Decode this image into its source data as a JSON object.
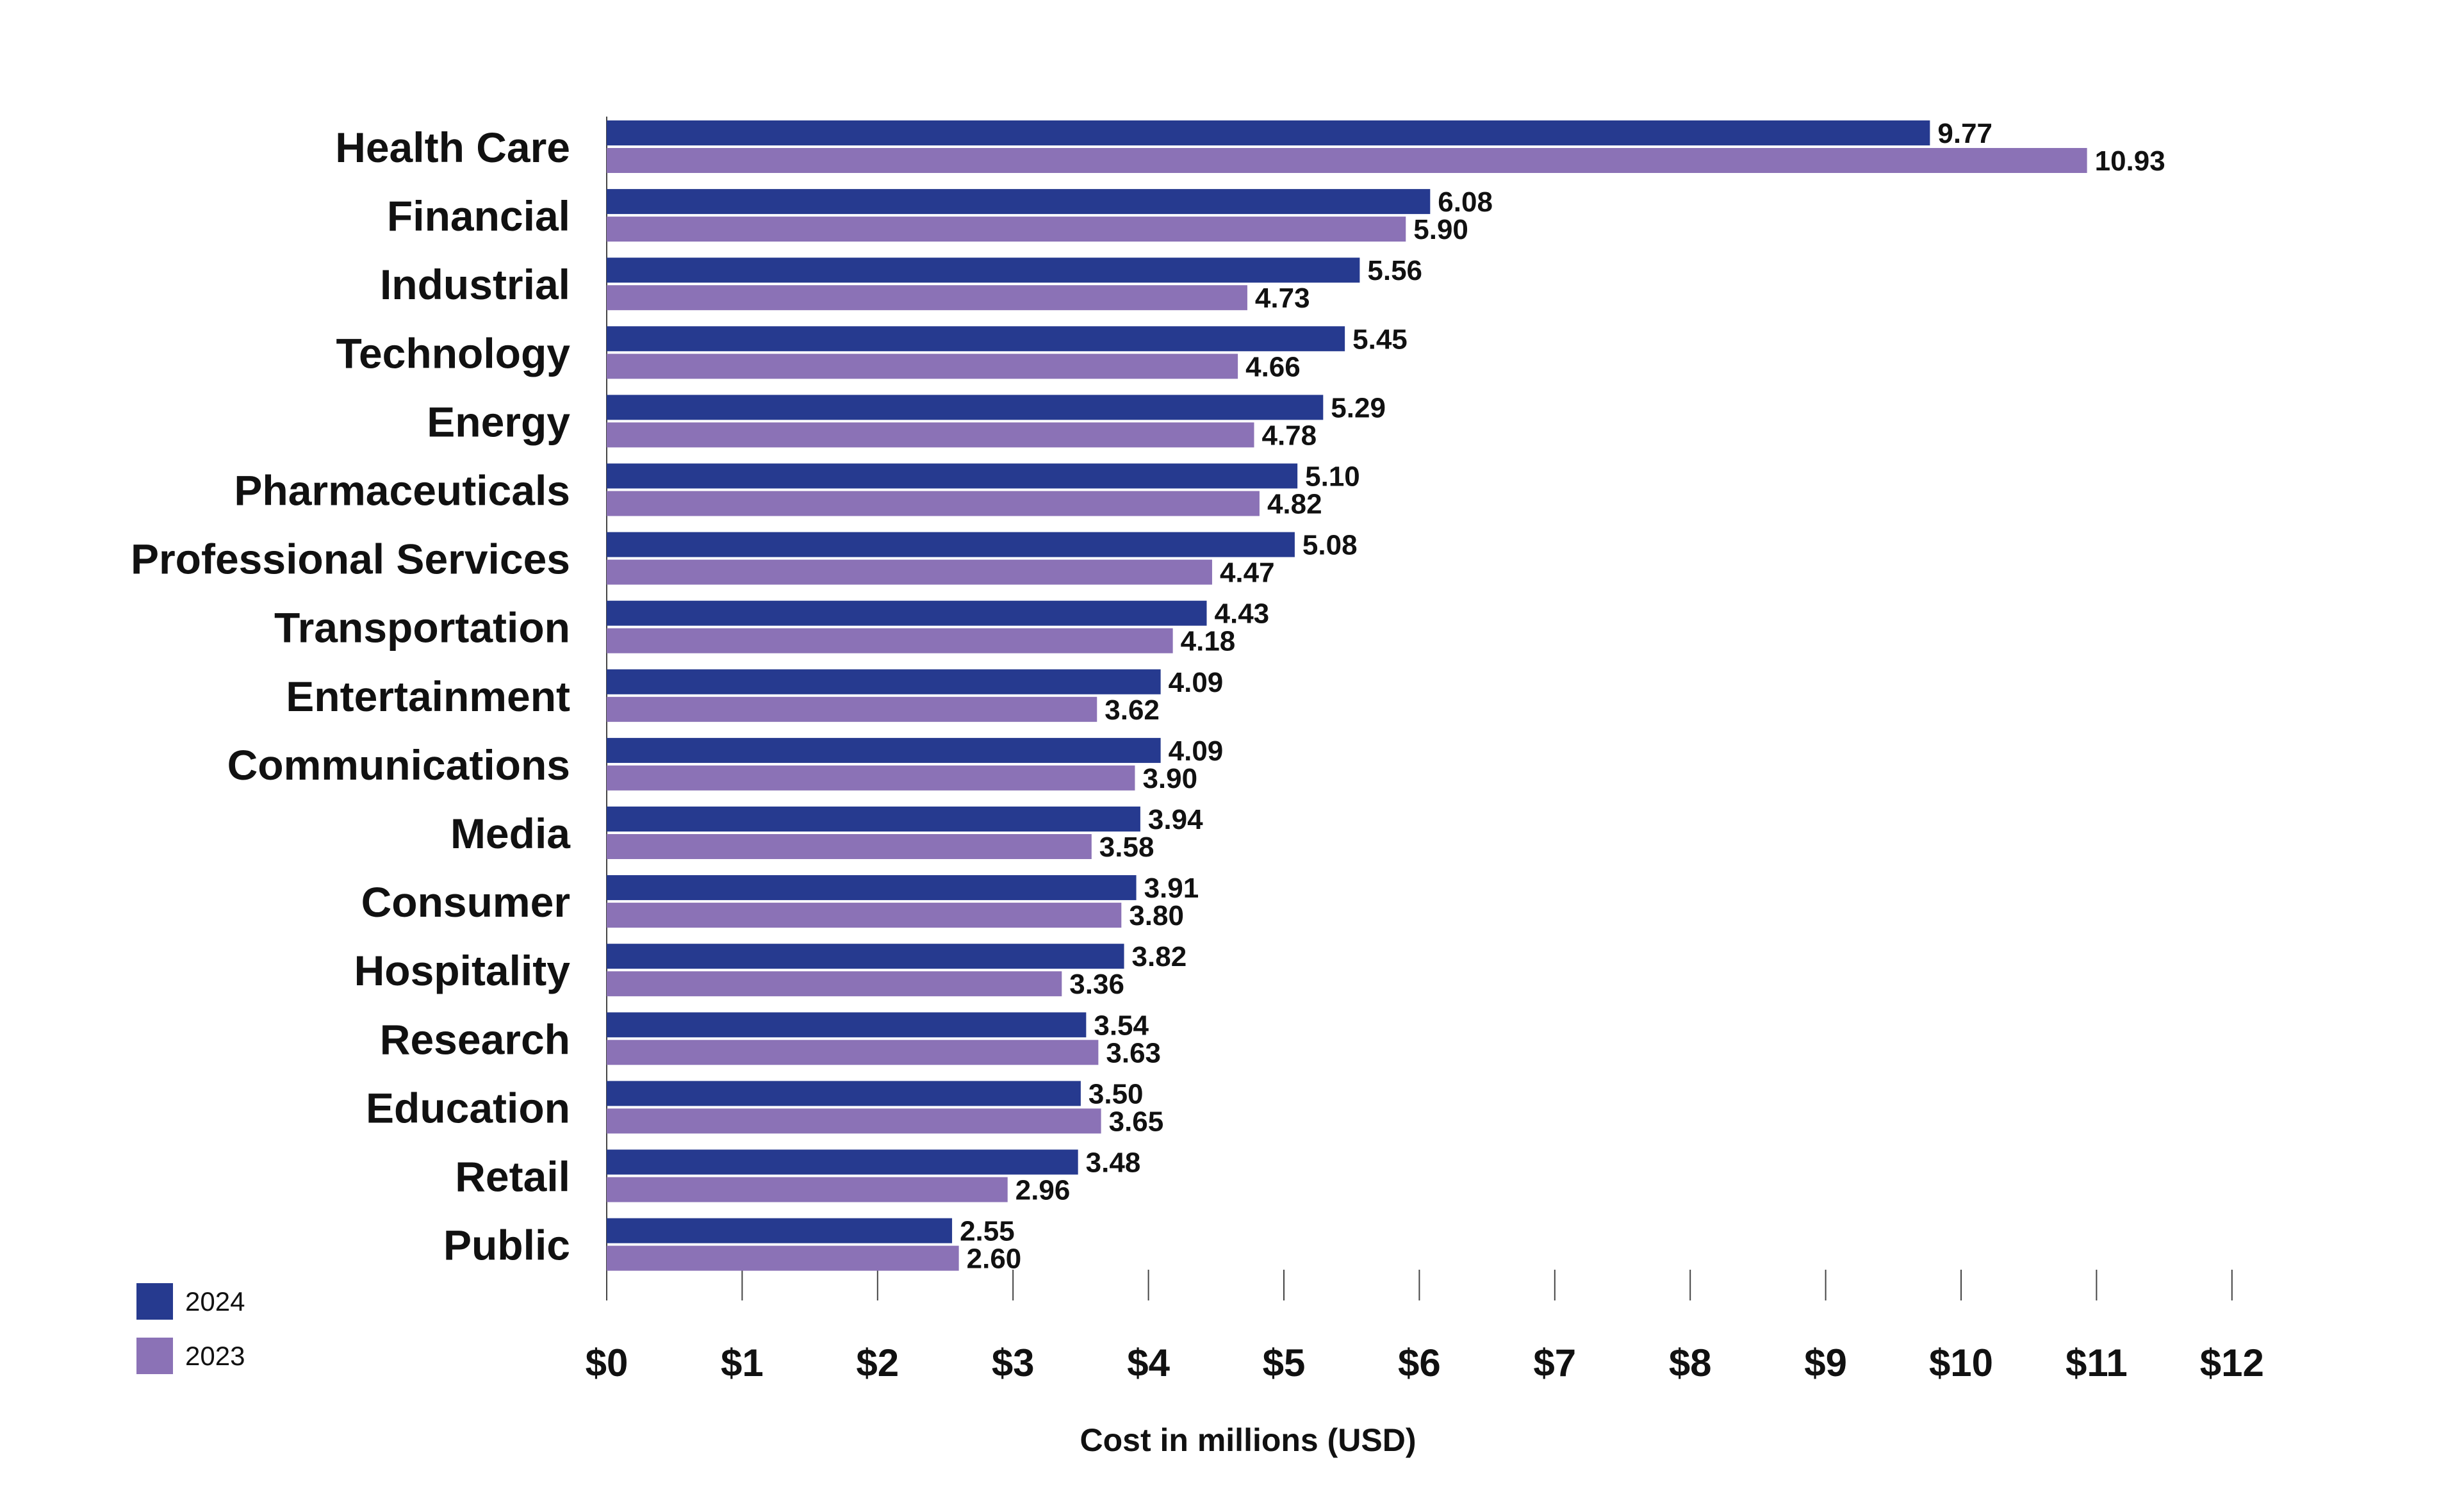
{
  "chart_data": {
    "type": "bar",
    "orientation": "horizontal",
    "categories": [
      "Health Care",
      "Financial",
      "Industrial",
      "Technology",
      "Energy",
      "Pharmaceuticals",
      "Professional Services",
      "Transportation",
      "Entertainment",
      "Communications",
      "Media",
      "Consumer",
      "Hospitality",
      "Research",
      "Education",
      "Retail",
      "Public"
    ],
    "series": [
      {
        "name": "2024",
        "color": "#263a8f",
        "values": [
          9.77,
          6.08,
          5.56,
          5.45,
          5.29,
          5.1,
          5.08,
          4.43,
          4.09,
          4.09,
          3.94,
          3.91,
          3.82,
          3.54,
          3.5,
          3.48,
          2.55
        ],
        "labels": [
          "9.77",
          "6.08",
          "5.56",
          "5.45",
          "5.29",
          "5.10",
          "5.08",
          "4.43",
          "4.09",
          "4.09",
          "3.94",
          "3.91",
          "3.82",
          "3.54",
          "3.50",
          "3.48",
          "2.55"
        ]
      },
      {
        "name": "2023",
        "color": "#8b72b6",
        "values": [
          10.93,
          5.9,
          4.73,
          4.66,
          4.78,
          4.82,
          4.47,
          4.18,
          3.62,
          3.9,
          3.58,
          3.8,
          3.36,
          3.63,
          3.65,
          2.96,
          2.6
        ],
        "labels": [
          "10.93",
          "5.90",
          "4.73",
          "4.66",
          "4.78",
          "4.82",
          "4.47",
          "4.18",
          "3.62",
          "3.90",
          "3.58",
          "3.80",
          "3.36",
          "3.63",
          "3.65",
          "2.96",
          "2.60"
        ]
      }
    ],
    "title": "",
    "xlabel": "Cost in millions (USD)",
    "ylabel": "",
    "xlim": [
      0,
      12
    ],
    "xticks": [
      0,
      1,
      2,
      3,
      4,
      5,
      6,
      7,
      8,
      9,
      10,
      11,
      12
    ],
    "xtick_labels": [
      "$0",
      "$1",
      "$2",
      "$3",
      "$4",
      "$5",
      "$6",
      "$7",
      "$8",
      "$9",
      "$10",
      "$11",
      "$12"
    ],
    "grid": false,
    "legend_position": "bottom-left"
  }
}
